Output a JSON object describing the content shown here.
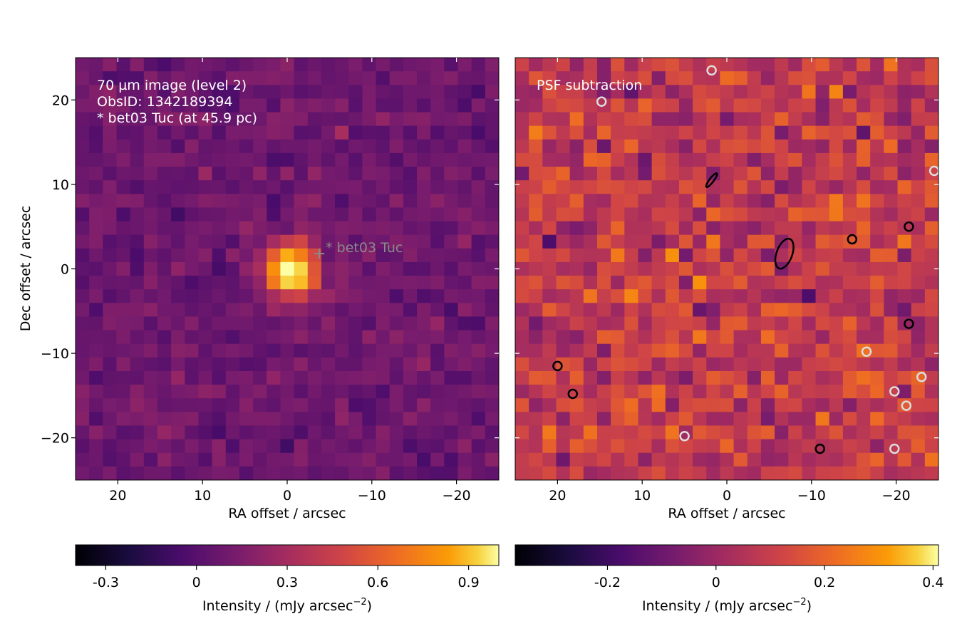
{
  "chart_data": [
    {
      "type": "heatmap",
      "xlabel": "RA offset / arcsec",
      "ylabel": "Dec offset / arcsec",
      "xlim": [
        25,
        -25
      ],
      "ylim": [
        -25,
        25
      ],
      "grid": false,
      "x_ticks": [
        20,
        10,
        0,
        -10,
        -20
      ],
      "x_tick_labels": [
        "20",
        "10",
        "0",
        "−10",
        "−20"
      ],
      "y_ticks": [
        20,
        10,
        0,
        -10,
        -20
      ],
      "y_tick_labels": [
        "20",
        "10",
        "0",
        "−10",
        "−20"
      ],
      "annotations": [
        "70 µm image (level 2)",
        "ObsID: 1342189394",
        "* bet03 Tuc (at 45.9 pc)"
      ],
      "marker": {
        "label": "* bet03 Tuc",
        "x": -3.8,
        "y": 1.8
      },
      "colormap": "inferno",
      "source_peak": {
        "x": -0.5,
        "y": -0.3,
        "intensity": 1.0
      },
      "colorbar": {
        "label_main": "Intensity / (mJy arcsec",
        "label_exp": "−2",
        "label_end": ")",
        "range": [
          -0.4,
          1.0
        ],
        "ticks": [
          -0.3,
          0,
          0.3,
          0.6,
          0.9
        ],
        "tick_labels": [
          "-0.3",
          "0",
          "0.3",
          "0.6",
          "0.9"
        ]
      }
    },
    {
      "type": "heatmap",
      "xlabel": "RA offset / arcsec",
      "ylabel": "",
      "xlim": [
        25,
        -25
      ],
      "ylim": [
        -25,
        25
      ],
      "grid": false,
      "x_ticks": [
        20,
        10,
        0,
        -10,
        -20
      ],
      "x_tick_labels": [
        "20",
        "10",
        "0",
        "−10",
        "−20"
      ],
      "annotations": [
        "PSF subtraction"
      ],
      "colormap": "inferno",
      "colorbar": {
        "label_main": "Intensity / (mJy arcsec",
        "label_exp": "−2",
        "label_end": ")",
        "range": [
          -0.37,
          0.41
        ],
        "ticks": [
          -0.2,
          0,
          0.2,
          0.4
        ],
        "tick_labels": [
          "-0.2",
          "0",
          "0.2",
          "0.4"
        ]
      },
      "contours": [
        {
          "color": "#000000",
          "x": -6.8,
          "y": 1.8
        },
        {
          "color": "#000000",
          "x": 1.8,
          "y": 10.5
        },
        {
          "color": "#000000",
          "x": -21.5,
          "y": 5.0
        },
        {
          "color": "#000000",
          "x": -11.0,
          "y": -21.3
        },
        {
          "color": "#000000",
          "x": 18.2,
          "y": -14.8
        },
        {
          "color": "#000000",
          "x": 20.0,
          "y": -11.5
        },
        {
          "color": "#000000",
          "x": -14.8,
          "y": 3.5
        },
        {
          "color": "#000000",
          "x": -21.5,
          "y": -6.5
        },
        {
          "color": "#dddddd",
          "x": 5.0,
          "y": -19.8
        },
        {
          "color": "#dddddd",
          "x": 14.8,
          "y": 19.8
        },
        {
          "color": "#dddddd",
          "x": 1.8,
          "y": 23.5
        },
        {
          "color": "#dddddd",
          "x": -23.0,
          "y": -12.8
        },
        {
          "color": "#dddddd",
          "x": -19.8,
          "y": -21.3
        },
        {
          "color": "#dddddd",
          "x": -19.8,
          "y": -14.5
        },
        {
          "color": "#dddddd",
          "x": -21.2,
          "y": -16.2
        },
        {
          "color": "#dddddd",
          "x": -24.5,
          "y": 11.6
        },
        {
          "color": "#dddddd",
          "x": -16.5,
          "y": -9.8
        }
      ]
    }
  ]
}
